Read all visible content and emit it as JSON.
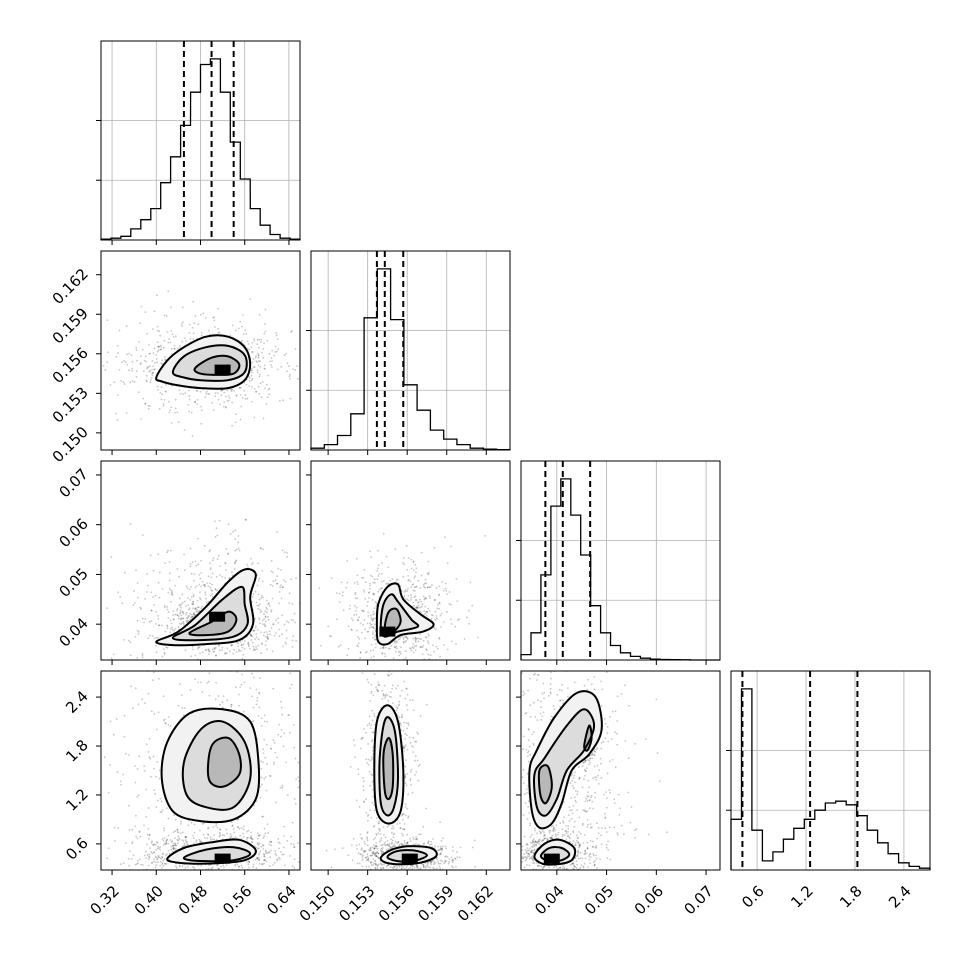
{
  "chart_data": {
    "type": "corner",
    "grid": true,
    "parameters": [
      {
        "range": [
          0.3,
          0.66
        ],
        "ticks": [
          0.32,
          0.4,
          0.48,
          0.56,
          0.64
        ],
        "tick_labels": [
          "0.32",
          "0.40",
          "0.48",
          "0.56",
          "0.64"
        ],
        "quantiles": [
          0.45,
          0.5,
          0.54
        ],
        "hist_counts": [
          0.5,
          1,
          2,
          6,
          11,
          17,
          31,
          45,
          62,
          80,
          95,
          98,
          80,
          53,
          33,
          17,
          8,
          3,
          1,
          0.5
        ]
      },
      {
        "range": [
          0.1487,
          0.1638
        ],
        "ticks": [
          0.15,
          0.153,
          0.156,
          0.159,
          0.162
        ],
        "tick_labels": [
          "0.150",
          "0.153",
          "0.156",
          "0.159",
          "0.162"
        ],
        "quantiles": [
          0.1537,
          0.1543,
          0.1557
        ],
        "hist_counts": [
          1,
          3,
          8,
          20,
          73,
          100,
          72,
          36,
          22,
          11,
          6,
          3,
          1,
          0.5,
          0.2
        ]
      },
      {
        "range": [
          0.0328,
          0.0728
        ],
        "ticks": [
          0.04,
          0.05,
          0.06,
          0.07
        ],
        "tick_labels": [
          "0.04",
          "0.05",
          "0.06",
          "0.07"
        ],
        "quantiles": [
          0.0377,
          0.0412,
          0.0467
        ],
        "hist_counts": [
          3,
          15,
          47,
          85,
          100,
          80,
          58,
          30,
          15,
          8,
          4,
          2,
          1,
          0.5,
          0.3,
          0.2,
          0.1,
          0,
          0,
          0
        ]
      },
      {
        "range": [
          0.28,
          2.72
        ],
        "ticks": [
          0.6,
          1.2,
          1.8,
          2.4
        ],
        "tick_labels": [
          "0.6",
          "1.2",
          "1.8",
          "2.4"
        ],
        "quantiles": [
          0.42,
          1.25,
          1.83
        ],
        "hist_counts": [
          28,
          100,
          22,
          5,
          10,
          17,
          23,
          28,
          33,
          37,
          38,
          36,
          30,
          22,
          15,
          9,
          4,
          2,
          1
        ]
      }
    ],
    "pairs": [
      {
        "x": 0,
        "y": 1,
        "peak": [
          0.52,
          0.1548
        ],
        "contours": [
          [
            [
              0.4,
              0.1542
            ],
            [
              0.42,
              0.1555
            ],
            [
              0.45,
              0.1565
            ],
            [
              0.49,
              0.1573
            ],
            [
              0.53,
              0.1573
            ],
            [
              0.56,
              0.1565
            ],
            [
              0.57,
              0.1552
            ],
            [
              0.56,
              0.154
            ],
            [
              0.53,
              0.1534
            ],
            [
              0.48,
              0.1534
            ],
            [
              0.44,
              0.1536
            ],
            [
              0.41,
              0.1539
            ]
          ],
          [
            [
              0.43,
              0.1546
            ],
            [
              0.45,
              0.1558
            ],
            [
              0.49,
              0.1565
            ],
            [
              0.53,
              0.1566
            ],
            [
              0.56,
              0.1559
            ],
            [
              0.56,
              0.1546
            ],
            [
              0.53,
              0.154
            ],
            [
              0.48,
              0.154
            ],
            [
              0.45,
              0.1542
            ]
          ],
          [
            [
              0.47,
              0.1549
            ],
            [
              0.5,
              0.1557
            ],
            [
              0.53,
              0.1558
            ],
            [
              0.55,
              0.1552
            ],
            [
              0.54,
              0.1545
            ],
            [
              0.51,
              0.1544
            ],
            [
              0.48,
              0.1545
            ]
          ]
        ]
      },
      {
        "x": 0,
        "y": 2,
        "peak": [
          0.51,
          0.0415
        ],
        "contours": [
          [
            [
              0.4,
              0.0365
            ],
            [
              0.44,
              0.0385
            ],
            [
              0.49,
              0.0435
            ],
            [
              0.53,
              0.0485
            ],
            [
              0.56,
              0.051
            ],
            [
              0.58,
              0.05
            ],
            [
              0.57,
              0.0455
            ],
            [
              0.575,
              0.04
            ],
            [
              0.55,
              0.0368
            ],
            [
              0.49,
              0.036
            ],
            [
              0.43,
              0.0358
            ]
          ],
          [
            [
              0.43,
              0.0372
            ],
            [
              0.47,
              0.0398
            ],
            [
              0.52,
              0.045
            ],
            [
              0.555,
              0.0475
            ],
            [
              0.56,
              0.044
            ],
            [
              0.565,
              0.04
            ],
            [
              0.54,
              0.0375
            ],
            [
              0.48,
              0.0368
            ]
          ],
          [
            [
              0.46,
              0.0382
            ],
            [
              0.5,
              0.0405
            ],
            [
              0.53,
              0.0425
            ],
            [
              0.545,
              0.041
            ],
            [
              0.53,
              0.0385
            ],
            [
              0.49,
              0.0378
            ]
          ]
        ]
      },
      {
        "x": 1,
        "y": 2,
        "peak": [
          0.1545,
          0.0385
        ],
        "contours": [
          [
            [
              0.1537,
              0.0395
            ],
            [
              0.1538,
              0.044
            ],
            [
              0.1545,
              0.0475
            ],
            [
              0.1553,
              0.048
            ],
            [
              0.1557,
              0.045
            ],
            [
              0.157,
              0.042
            ],
            [
              0.158,
              0.04
            ],
            [
              0.1572,
              0.0385
            ],
            [
              0.1555,
              0.0378
            ],
            [
              0.1545,
              0.036
            ],
            [
              0.1538,
              0.0365
            ]
          ],
          [
            [
              0.154,
              0.0395
            ],
            [
              0.1542,
              0.044
            ],
            [
              0.1548,
              0.046
            ],
            [
              0.1553,
              0.0445
            ],
            [
              0.1563,
              0.041
            ],
            [
              0.1568,
              0.0395
            ],
            [
              0.1553,
              0.0385
            ],
            [
              0.1543,
              0.0375
            ]
          ],
          [
            [
              0.1543,
              0.0395
            ],
            [
              0.1546,
              0.0425
            ],
            [
              0.1552,
              0.043
            ],
            [
              0.1555,
              0.0405
            ],
            [
              0.155,
              0.0385
            ],
            [
              0.1545,
              0.0382
            ]
          ]
        ]
      },
      {
        "x": 0,
        "y": 3,
        "peak": [
          0.52,
          0.42
        ],
        "contours": [
          [
            [
              0.43,
              1.0
            ],
            [
              0.41,
              1.4
            ],
            [
              0.42,
              1.85
            ],
            [
              0.46,
              2.2
            ],
            [
              0.52,
              2.25
            ],
            [
              0.57,
              2.1
            ],
            [
              0.585,
              1.6
            ],
            [
              0.58,
              1.15
            ],
            [
              0.54,
              0.9
            ],
            [
              0.48,
              0.88
            ]
          ],
          [
            [
              0.455,
              1.2
            ],
            [
              0.45,
              1.6
            ],
            [
              0.48,
              2.0
            ],
            [
              0.52,
              2.1
            ],
            [
              0.56,
              1.85
            ],
            [
              0.57,
              1.4
            ],
            [
              0.54,
              1.05
            ],
            [
              0.49,
              1.05
            ]
          ],
          [
            [
              0.495,
              1.4
            ],
            [
              0.5,
              1.8
            ],
            [
              0.53,
              1.9
            ],
            [
              0.55,
              1.7
            ],
            [
              0.55,
              1.45
            ],
            [
              0.52,
              1.3
            ]
          ],
          [
            [
              0.42,
              0.42
            ],
            [
              0.45,
              0.55
            ],
            [
              0.5,
              0.62
            ],
            [
              0.55,
              0.65
            ],
            [
              0.58,
              0.52
            ],
            [
              0.56,
              0.4
            ],
            [
              0.5,
              0.36
            ],
            [
              0.44,
              0.37
            ]
          ],
          [
            [
              0.45,
              0.43
            ],
            [
              0.49,
              0.53
            ],
            [
              0.54,
              0.56
            ],
            [
              0.57,
              0.48
            ],
            [
              0.54,
              0.4
            ],
            [
              0.48,
              0.39
            ]
          ]
        ]
      },
      {
        "x": 1,
        "y": 3,
        "peak": [
          0.1562,
          0.42
        ],
        "contours": [
          [
            [
              0.1537,
              1.0
            ],
            [
              0.1535,
              1.5
            ],
            [
              0.1537,
              2.1
            ],
            [
              0.1545,
              2.3
            ],
            [
              0.1553,
              2.1
            ],
            [
              0.1557,
              1.5
            ],
            [
              0.1555,
              1.0
            ],
            [
              0.1546,
              0.85
            ]
          ],
          [
            [
              0.154,
              1.1
            ],
            [
              0.1539,
              1.6
            ],
            [
              0.1542,
              2.05
            ],
            [
              0.1546,
              2.15
            ],
            [
              0.1551,
              1.95
            ],
            [
              0.1553,
              1.4
            ],
            [
              0.155,
              1.05
            ],
            [
              0.1545,
              0.95
            ]
          ],
          [
            [
              0.1543,
              1.25
            ],
            [
              0.1542,
              1.7
            ],
            [
              0.1546,
              1.9
            ],
            [
              0.1549,
              1.7
            ],
            [
              0.1549,
              1.3
            ],
            [
              0.1546,
              1.15
            ]
          ],
          [
            [
              0.154,
              0.43
            ],
            [
              0.1547,
              0.52
            ],
            [
              0.156,
              0.57
            ],
            [
              0.1578,
              0.55
            ],
            [
              0.1582,
              0.45
            ],
            [
              0.157,
              0.37
            ],
            [
              0.1555,
              0.35
            ],
            [
              0.1544,
              0.37
            ]
          ],
          [
            [
              0.1545,
              0.44
            ],
            [
              0.1552,
              0.51
            ],
            [
              0.1565,
              0.52
            ],
            [
              0.1575,
              0.46
            ],
            [
              0.1565,
              0.39
            ],
            [
              0.1552,
              0.39
            ]
          ]
        ]
      },
      {
        "x": 2,
        "y": 3,
        "peak": [
          0.039,
          0.42
        ],
        "contours": [
          [
            [
              0.035,
              1.0
            ],
            [
              0.0345,
              1.5
            ],
            [
              0.036,
              1.75
            ],
            [
              0.0395,
              2.15
            ],
            [
              0.044,
              2.45
            ],
            [
              0.0478,
              2.4
            ],
            [
              0.049,
              2.0
            ],
            [
              0.0465,
              1.7
            ],
            [
              0.043,
              1.5
            ],
            [
              0.041,
              1.1
            ],
            [
              0.039,
              0.85
            ],
            [
              0.0365,
              0.8
            ]
          ],
          [
            [
              0.036,
              1.05
            ],
            [
              0.0355,
              1.45
            ],
            [
              0.0375,
              1.65
            ],
            [
              0.042,
              2.05
            ],
            [
              0.0455,
              2.25
            ],
            [
              0.0475,
              2.05
            ],
            [
              0.0455,
              1.75
            ],
            [
              0.042,
              1.5
            ],
            [
              0.04,
              1.15
            ],
            [
              0.0378,
              0.95
            ]
          ],
          [
            [
              0.0367,
              1.2
            ],
            [
              0.0365,
              1.5
            ],
            [
              0.0382,
              1.55
            ],
            [
              0.039,
              1.3
            ],
            [
              0.0378,
              1.1
            ]
          ],
          [
            [
              0.0455,
              1.8
            ],
            [
              0.0465,
              2.05
            ],
            [
              0.047,
              1.9
            ],
            [
              0.0462,
              1.75
            ]
          ],
          [
            [
              0.0355,
              0.45
            ],
            [
              0.0375,
              0.6
            ],
            [
              0.0405,
              0.65
            ],
            [
              0.0435,
              0.55
            ],
            [
              0.043,
              0.4
            ],
            [
              0.04,
              0.35
            ],
            [
              0.037,
              0.36
            ]
          ],
          [
            [
              0.0368,
              0.45
            ],
            [
              0.0385,
              0.55
            ],
            [
              0.041,
              0.55
            ],
            [
              0.0425,
              0.47
            ],
            [
              0.041,
              0.4
            ],
            [
              0.0385,
              0.39
            ]
          ]
        ]
      }
    ]
  }
}
